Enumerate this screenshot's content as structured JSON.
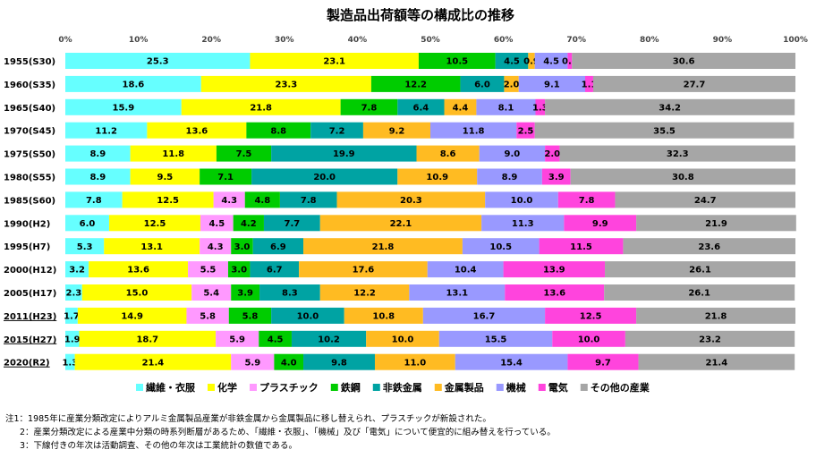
{
  "chart_data": {
    "type": "bar",
    "orientation": "horizontal",
    "stacked": true,
    "percent": true,
    "title": "製造品出荷額等の構成比の推移",
    "x_ticks": [
      "0%",
      "10%",
      "20%",
      "30%",
      "40%",
      "50%",
      "60%",
      "70%",
      "80%",
      "90%",
      "100%"
    ],
    "xlim": [
      0,
      100
    ],
    "legend_position": "bottom",
    "categories": [
      "1955(S30)",
      "1960(S35)",
      "1965(S40)",
      "1970(S45)",
      "1975(S50)",
      "1980(S55)",
      "1985(S60)",
      "1990(H2)",
      "1995(H7)",
      "2000(H12)",
      "2005(H17)",
      "2011(H23)",
      "2015(H27)",
      "2020(R2)"
    ],
    "underlined_categories": [
      "2011(H23)",
      "2015(H27)",
      "2020(R2)"
    ],
    "series": [
      {
        "name": "繊維・衣服",
        "color": "#66ffff",
        "values": [
          25.3,
          18.6,
          15.9,
          11.2,
          8.9,
          8.9,
          7.8,
          6.0,
          5.3,
          3.2,
          2.3,
          1.7,
          1.9,
          1.3
        ]
      },
      {
        "name": "化学",
        "color": "#ffff00",
        "values": [
          23.1,
          23.3,
          21.8,
          13.6,
          11.8,
          9.5,
          12.5,
          12.5,
          13.1,
          13.6,
          15.0,
          14.9,
          18.7,
          21.4
        ]
      },
      {
        "name": "プラスチック",
        "color": "#ff99ff",
        "values": [
          0,
          0,
          0,
          0,
          0,
          0,
          4.3,
          4.5,
          4.3,
          5.5,
          5.4,
          5.8,
          5.9,
          5.9
        ]
      },
      {
        "name": "鉄鋼",
        "color": "#00cc00",
        "values": [
          10.5,
          12.2,
          7.8,
          8.8,
          7.5,
          7.1,
          4.8,
          4.2,
          3.0,
          3.0,
          3.9,
          5.8,
          4.5,
          4.0
        ]
      },
      {
        "name": "非鉄金属",
        "color": "#00a3a3",
        "values": [
          4.5,
          6.0,
          6.4,
          7.2,
          19.9,
          20.0,
          7.8,
          7.7,
          6.9,
          6.7,
          8.3,
          10.0,
          10.2,
          9.8
        ]
      },
      {
        "name": "金属製品",
        "color": "#ffbb22",
        "values": [
          0.9,
          2.0,
          4.4,
          9.2,
          8.6,
          10.9,
          20.3,
          22.1,
          21.8,
          17.6,
          12.2,
          10.8,
          10.0,
          11.0
        ]
      },
      {
        "name": "機械",
        "color": "#9999ff",
        "values": [
          4.5,
          9.1,
          8.1,
          11.8,
          9.0,
          8.9,
          10.0,
          11.3,
          10.5,
          10.4,
          13.1,
          16.7,
          15.5,
          15.4
        ]
      },
      {
        "name": "電気",
        "color": "#ff44dd",
        "values": [
          0.6,
          1.1,
          1.3,
          2.5,
          2.0,
          3.9,
          7.8,
          9.9,
          11.5,
          13.9,
          13.6,
          12.5,
          10.0,
          9.7
        ]
      },
      {
        "name": "その他の産業",
        "color": "#a6a6a6",
        "values": [
          30.6,
          27.7,
          34.2,
          35.5,
          32.3,
          30.8,
          24.7,
          21.9,
          23.6,
          26.1,
          26.1,
          21.8,
          23.2,
          21.4
        ]
      }
    ]
  },
  "notes": [
    "注1：1985年に産業分類改定によりアルミ金属製品産業が非鉄金属から金属製品に移し替えられ、プラスチックが新設された。",
    "2：産業分類改定による産業中分類の時系列断層があるため、「繊維・衣服」、「機械」及び「電気」について便宜的に組み替えを行っている。",
    "3：下線付きの年次は活動調査、その他の年次は工業統計の数値である。"
  ]
}
